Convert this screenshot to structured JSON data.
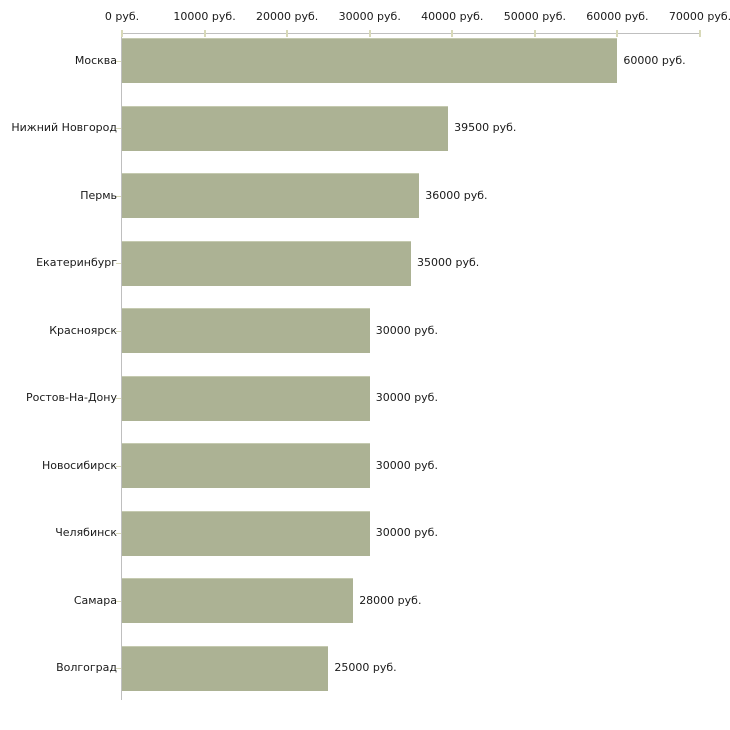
{
  "chart_data": {
    "type": "bar",
    "orientation": "horizontal",
    "title": "",
    "categories": [
      "Москва",
      "Нижний Новгород",
      "Пермь",
      "Екатеринбург",
      "Красноярск",
      "Ростов-На-Дону",
      "Новосибирск",
      "Челябинск",
      "Самара",
      "Волгоград"
    ],
    "values": [
      60000,
      39500,
      36000,
      35000,
      30000,
      30000,
      30000,
      30000,
      28000,
      25000
    ],
    "value_labels": [
      "60000 руб.",
      "39500 руб.",
      "36000 руб.",
      "35000 руб.",
      "30000 руб.",
      "30000 руб.",
      "30000 руб.",
      "30000 руб.",
      "28000 руб.",
      "25000 руб."
    ],
    "unit": "руб.",
    "xlabel": "",
    "ylabel": "",
    "xlim": [
      0,
      70000
    ],
    "x_ticks": [
      0,
      10000,
      20000,
      30000,
      40000,
      50000,
      60000,
      70000
    ],
    "x_tick_labels": [
      "0 руб.",
      "10000 руб.",
      "20000 руб.",
      "30000 руб.",
      "40000 руб.",
      "50000 руб.",
      "60000 руб.",
      "70000 руб."
    ],
    "grid": false,
    "legend_position": "none",
    "colors": {
      "bar_fill": "#acb294",
      "bar_edge_top": "#c5cab0",
      "axis_line": "#bfbfbf",
      "tick_mark": "#d8d9b8",
      "text": "#1a1a1a",
      "background": "#ffffff"
    }
  }
}
